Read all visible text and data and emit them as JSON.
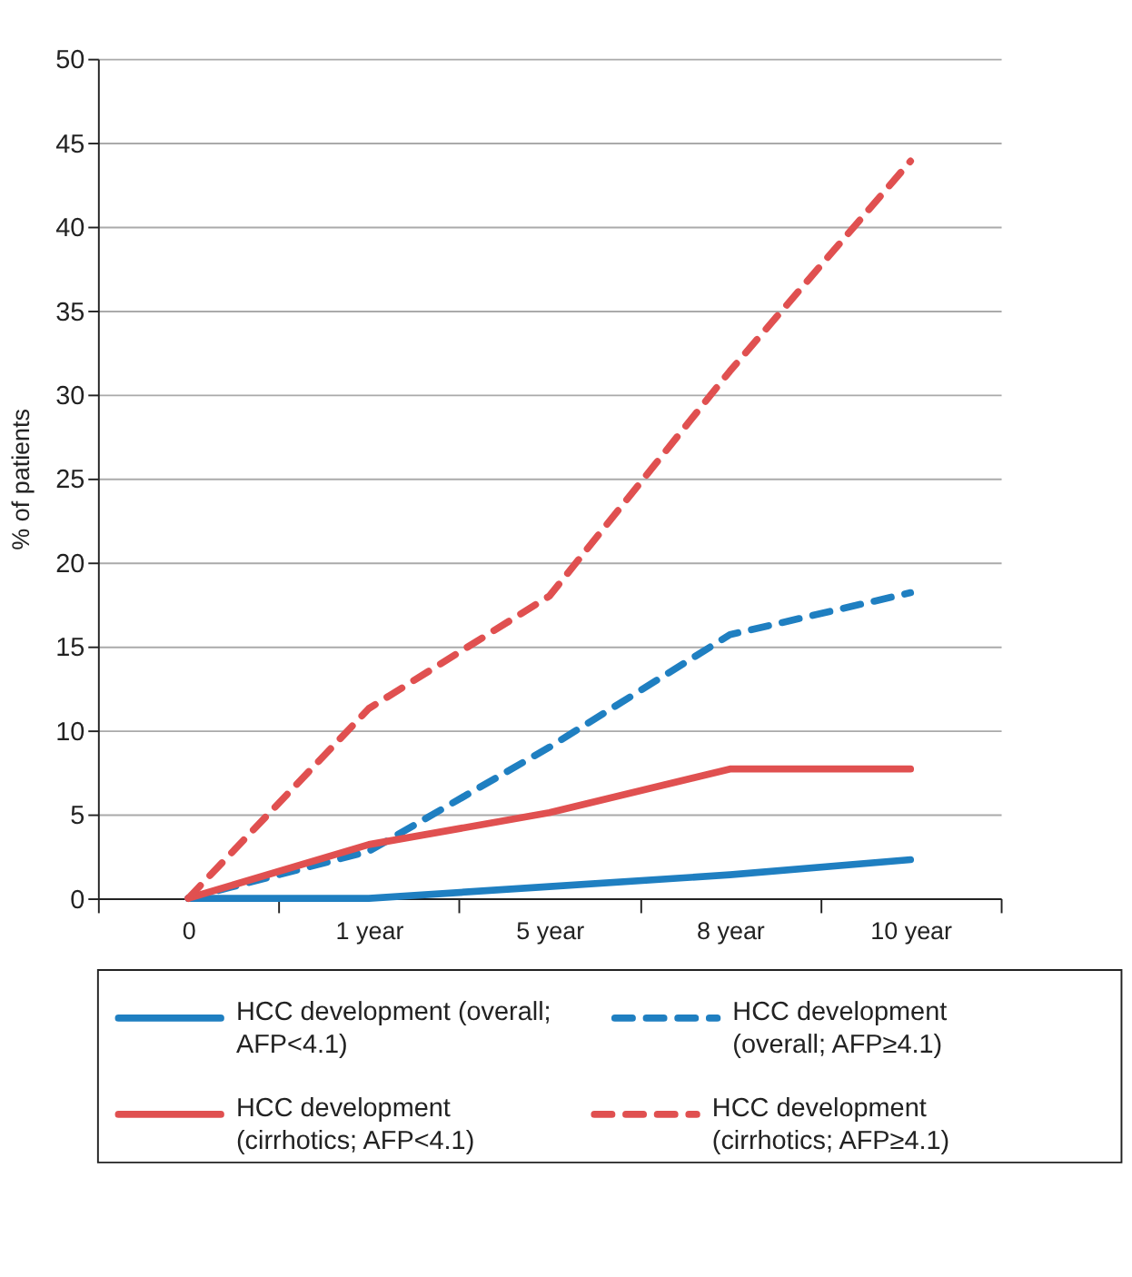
{
  "chart_data": {
    "type": "line",
    "ylabel": "% of patients",
    "categories": [
      "0",
      "1 year",
      "5 year",
      "8 year",
      "10 year"
    ],
    "ylim": [
      0,
      50
    ],
    "yticks": [
      0,
      5,
      10,
      15,
      20,
      25,
      30,
      35,
      40,
      45,
      50
    ],
    "grid": "y",
    "legend": "bottom",
    "marker": "none",
    "series": [
      {
        "name": "HCC development (overall; AFP<4.1)",
        "color": "#1f7fc1",
        "line_style": "solid",
        "values": [
          0,
          0,
          0.7,
          1.4,
          2.3
        ]
      },
      {
        "name": "HCC development (overall; AFP≥4.1)",
        "color": "#1f7fc1",
        "line_style": "dashed",
        "values": [
          0,
          2.8,
          9.0,
          15.7,
          18.2
        ]
      },
      {
        "name": "HCC development (cirrhotics; AFP<4.1)",
        "color": "#e05050",
        "line_style": "solid",
        "values": [
          0,
          3.2,
          5.1,
          7.7,
          7.7
        ]
      },
      {
        "name": "HCC development (cirrhotics; AFP≥4.1)",
        "color": "#e05050",
        "line_style": "dashed",
        "values": [
          0,
          11.3,
          18.0,
          31.4,
          43.9
        ]
      }
    ]
  }
}
